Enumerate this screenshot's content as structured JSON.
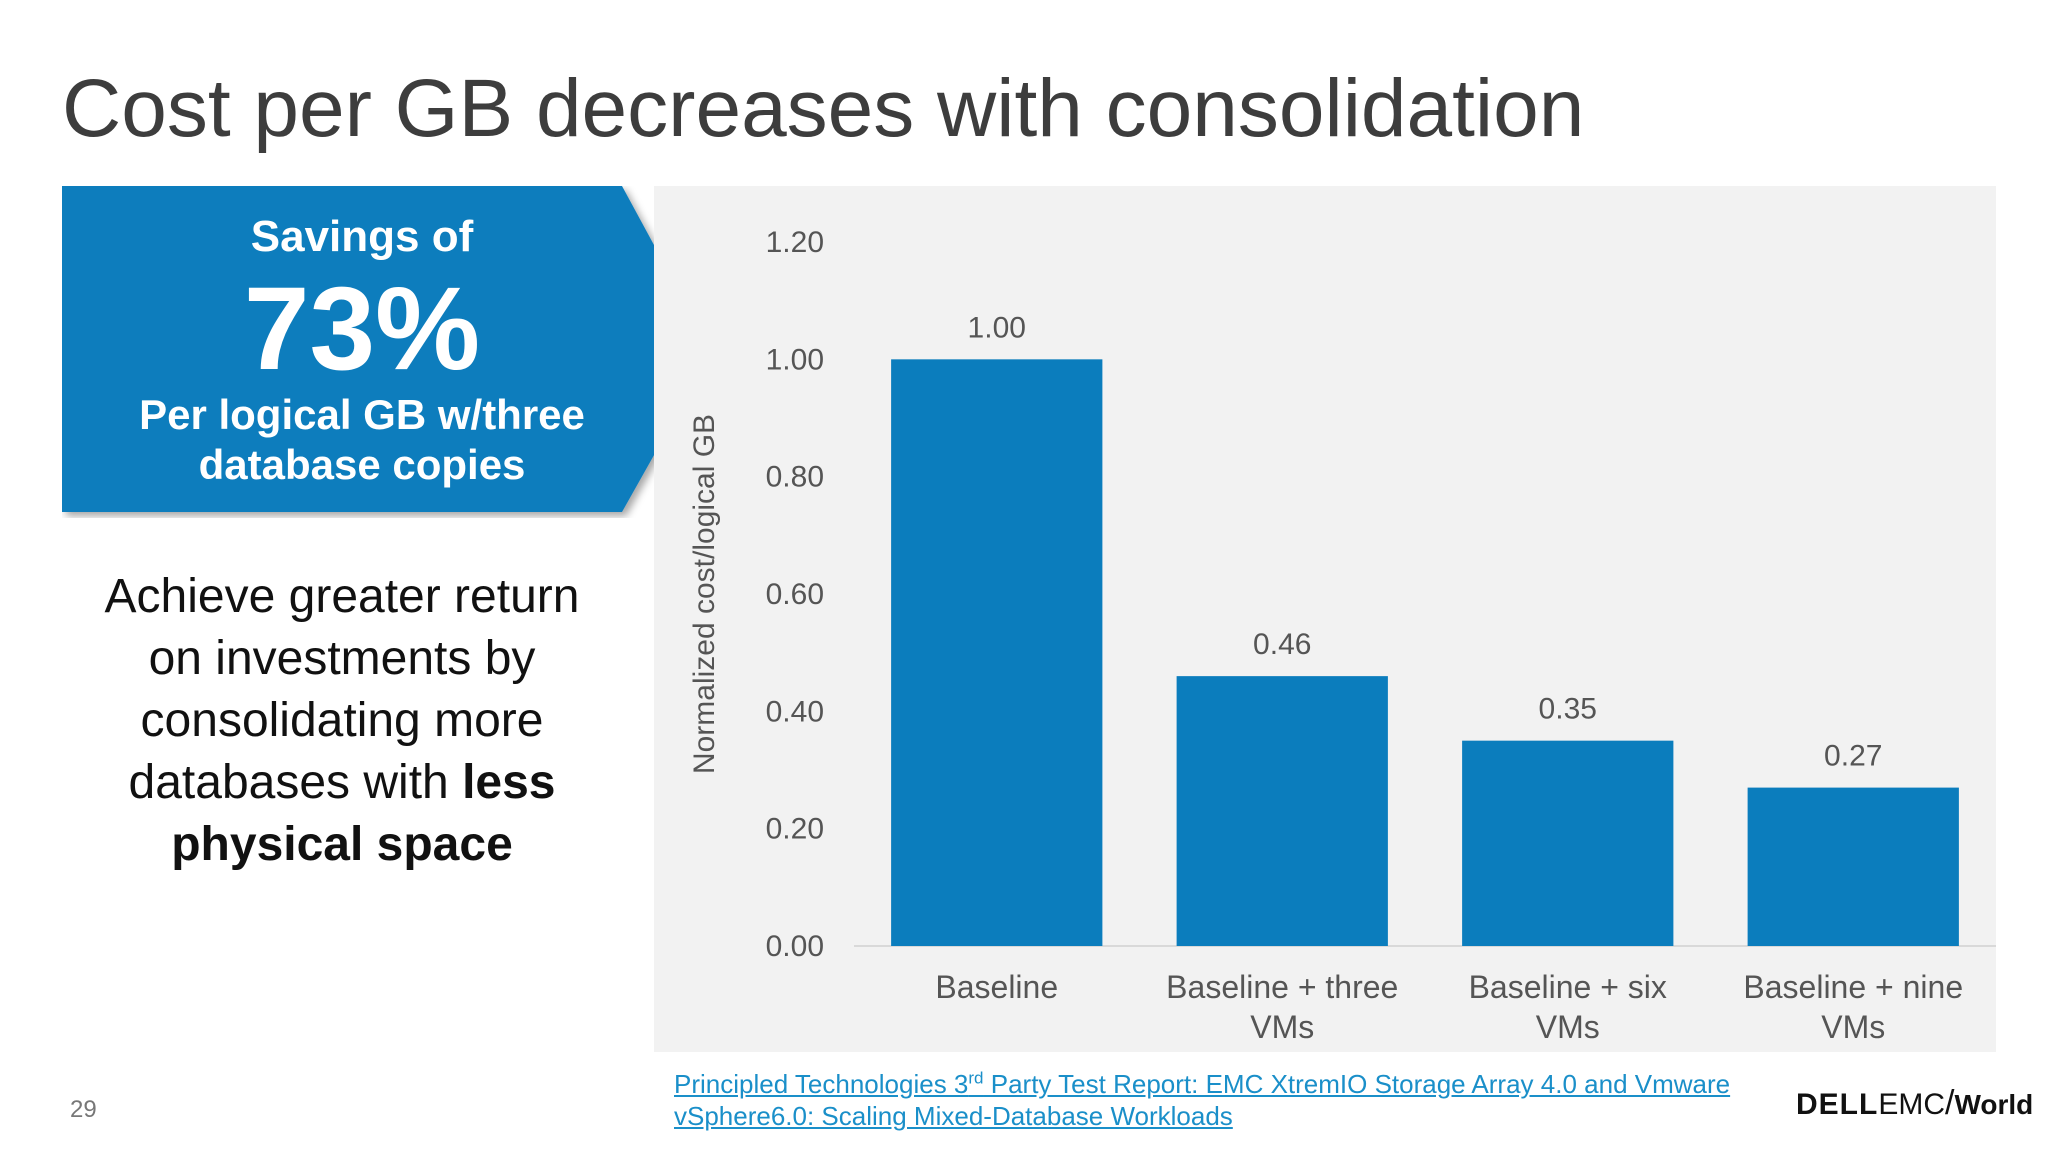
{
  "slide": {
    "title": "Cost per GB decreases with consolidation",
    "page_number": "29"
  },
  "callout": {
    "lead": "Savings of",
    "big": "73%",
    "line1": "Per logical GB w/three",
    "line2": "database copies",
    "color": "#0b7dbd"
  },
  "body": {
    "line1": "Achieve greater return",
    "line2": "on investments by",
    "line3": "consolidating more",
    "line4_pre": "databases with ",
    "line4_bold": "less",
    "line5_bold": "physical space"
  },
  "footnote": {
    "part1": "Principled Technologies 3",
    "sup": "rd",
    "part2": " Party Test Report: EMC XtremIO Storage Array 4.0 and Vmware",
    "line2": "vSphere6.0: Scaling Mixed-Database Workloads"
  },
  "logo": {
    "dell": "DELL",
    "emc": "EMC",
    "world": "World"
  },
  "chart_data": {
    "type": "bar",
    "categories": [
      [
        "Baseline"
      ],
      [
        "Baseline + three",
        "VMs"
      ],
      [
        "Baseline + six",
        "VMs"
      ],
      [
        "Baseline + nine",
        "VMs"
      ]
    ],
    "values": [
      1.0,
      0.46,
      0.35,
      0.27
    ],
    "data_labels": [
      "1.00",
      "0.46",
      "0.35",
      "0.27"
    ],
    "ylabel": "Normalized  cost/logical  GB",
    "ylim": [
      0,
      1.2
    ],
    "yticks": [
      "0.00",
      "0.20",
      "0.40",
      "0.60",
      "0.80",
      "1.00",
      "1.20"
    ],
    "grid": false,
    "bar_color": "#0b7dbd"
  }
}
